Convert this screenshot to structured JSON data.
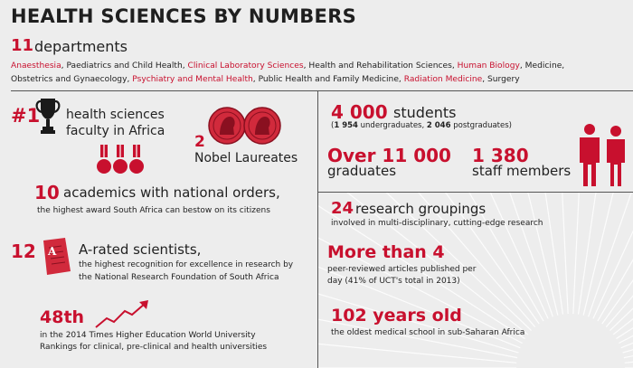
{
  "title": "HEALTH SCIENCES BY NUMBERS",
  "departments": {
    "count": "11",
    "label": "departments",
    "list": [
      {
        "text": "Anaesthesia",
        "highlight": true
      },
      {
        "text": "Paediatrics and Child Health",
        "highlight": false
      },
      {
        "text": "Clinical Laboratory Sciences",
        "highlight": true
      },
      {
        "text": "Health and Rehabilitation Sciences",
        "highlight": false
      },
      {
        "text": "Human Biology",
        "highlight": true
      },
      {
        "text": "Medicine",
        "highlight": false
      },
      {
        "text": "Obstetrics and Gynaecology",
        "highlight": false
      },
      {
        "text": "Psychiatry and Mental Health",
        "highlight": true
      },
      {
        "text": "Public Health and Family Medicine",
        "highlight": false
      },
      {
        "text": "Radiation Medicine",
        "highlight": true
      },
      {
        "text": "Surgery",
        "highlight": false
      }
    ]
  },
  "rank": {
    "num": "#1",
    "line1": "health sciences",
    "line2": "faculty in Africa"
  },
  "nobel": {
    "num": "2",
    "label": "Nobel Laureates"
  },
  "academics": {
    "num": "10",
    "label": "academics with national orders,",
    "sub": "the highest award South Africa can bestow on its citizens"
  },
  "arated": {
    "num": "12",
    "label": "A-rated scientists,",
    "sub1": "the highest recognition for excellence in research by",
    "sub2": "the National Research Foundation of South Africa"
  },
  "ranking": {
    "num": "48th",
    "sub1": "in the 2014 Times Higher Education World University",
    "sub2": "Rankings for clinical, pre-clinical and health universities"
  },
  "students": {
    "num": "4 000",
    "label": "students",
    "ug_num": "1 954",
    "ug_label": "undergraduates,",
    "pg_num": "2 046",
    "pg_label": "postgraduates"
  },
  "graduates": {
    "num": "Over 11 000",
    "label": "graduates"
  },
  "staff": {
    "num": "1 380",
    "label": "staff members"
  },
  "research": {
    "num": "24",
    "label": "research groupings",
    "sub": "involved in multi-disciplinary, cutting-edge research"
  },
  "articles": {
    "num": "More than 4",
    "sub1": "peer-reviewed articles published per",
    "sub2": "day (41% of UCT's total in 2013)"
  },
  "school": {
    "num": "102 years old",
    "sub": "the oldest medical school in sub-Saharan Africa"
  },
  "colors": {
    "accent": "#c8102e",
    "background": "#ededed",
    "text": "#222222"
  },
  "icons": [
    "trophy-icon",
    "nobel-medal-icon",
    "medals-icon",
    "a-grade-paper-icon",
    "rising-arrow-icon",
    "people-icon"
  ]
}
